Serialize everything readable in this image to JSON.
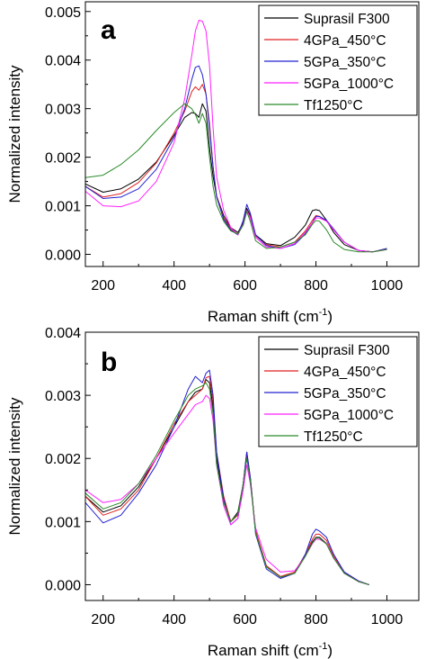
{
  "chart_data": [
    {
      "type": "line",
      "panel_label": "a",
      "xlabel": "Raman shift (cm",
      "xlabel_sup": "-1",
      "xlabel_end": ")",
      "ylabel": "Normalized intensity",
      "xlim": [
        150,
        1090
      ],
      "ylim": [
        -0.00025,
        0.0052
      ],
      "xticks": [
        200,
        400,
        600,
        800,
        1000
      ],
      "xtick_labels": [
        "200",
        "400",
        "600",
        "800",
        "1000"
      ],
      "yticks": [
        0.0,
        0.001,
        0.002,
        0.003,
        0.004,
        0.005
      ],
      "ytick_labels": [
        "0.000",
        "0.001",
        "0.002",
        "0.003",
        "0.004",
        "0.005"
      ],
      "legend_position": "top-right",
      "series": [
        {
          "name": "Suprasil F300",
          "color": "#000000",
          "x": [
            150,
            200,
            250,
            300,
            350,
            400,
            430,
            450,
            460,
            470,
            480,
            490,
            500,
            510,
            520,
            540,
            560,
            580,
            595,
            605,
            615,
            630,
            660,
            700,
            740,
            770,
            790,
            800,
            810,
            830,
            850,
            880,
            920,
            960,
            1000
          ],
          "y": [
            0.00145,
            0.00128,
            0.00135,
            0.00155,
            0.0019,
            0.00245,
            0.00282,
            0.00292,
            0.0029,
            0.00282,
            0.0031,
            0.00295,
            0.0022,
            0.0016,
            0.0012,
            0.0008,
            0.00055,
            0.00045,
            0.00065,
            0.00095,
            0.0008,
            0.0004,
            0.00022,
            0.00018,
            0.00035,
            0.0006,
            0.0009,
            0.00092,
            0.0009,
            0.0007,
            0.00045,
            0.0002,
            8e-05,
            5e-05,
            0.0001
          ]
        },
        {
          "name": "4GPa_450°C",
          "color": "#e02020",
          "x": [
            150,
            200,
            250,
            300,
            350,
            400,
            430,
            450,
            460,
            470,
            480,
            490,
            500,
            510,
            520,
            540,
            560,
            580,
            595,
            605,
            615,
            630,
            660,
            700,
            740,
            770,
            790,
            800,
            810,
            830,
            850,
            880,
            920,
            960,
            1000
          ],
          "y": [
            0.0014,
            0.00118,
            0.00125,
            0.00148,
            0.00188,
            0.0025,
            0.00295,
            0.00335,
            0.00345,
            0.00338,
            0.0035,
            0.0033,
            0.0027,
            0.0018,
            0.0012,
            0.00075,
            0.00052,
            0.00042,
            0.00062,
            0.0009,
            0.00078,
            0.00038,
            0.0002,
            0.00015,
            0.00025,
            0.00048,
            0.0007,
            0.0008,
            0.00078,
            0.00068,
            0.0005,
            0.00025,
            8e-05,
            5e-05,
            0.00012
          ]
        },
        {
          "name": "5GPa_350°C",
          "color": "#2020d0",
          "x": [
            150,
            200,
            250,
            300,
            350,
            400,
            430,
            450,
            460,
            470,
            480,
            490,
            500,
            510,
            520,
            540,
            560,
            580,
            595,
            605,
            615,
            630,
            660,
            700,
            740,
            770,
            790,
            800,
            810,
            830,
            850,
            880,
            920,
            960,
            1000
          ],
          "y": [
            0.0014,
            0.00115,
            0.00118,
            0.00135,
            0.00175,
            0.0024,
            0.003,
            0.0036,
            0.00385,
            0.00388,
            0.0037,
            0.0033,
            0.0026,
            0.0018,
            0.00118,
            0.00072,
            0.0005,
            0.0004,
            0.0007,
            0.00103,
            0.00085,
            0.0004,
            0.00018,
            0.00012,
            0.0002,
            0.00042,
            0.00065,
            0.00078,
            0.00078,
            0.0007,
            0.00052,
            0.00025,
            8e-05,
            5e-05,
            0.00012
          ]
        },
        {
          "name": "5GPa_1000°C",
          "color": "#ff20ff",
          "x": [
            150,
            200,
            250,
            300,
            350,
            400,
            430,
            450,
            460,
            470,
            480,
            490,
            500,
            510,
            520,
            540,
            560,
            580,
            595,
            605,
            615,
            630,
            660,
            700,
            740,
            770,
            790,
            800,
            810,
            830,
            850,
            880,
            920,
            960,
            1000
          ],
          "y": [
            0.0013,
            0.001,
            0.00098,
            0.0011,
            0.0015,
            0.0023,
            0.0032,
            0.0041,
            0.0046,
            0.00482,
            0.0048,
            0.0046,
            0.0039,
            0.0026,
            0.0016,
            0.0009,
            0.00055,
            0.0004,
            0.00062,
            0.0009,
            0.00075,
            0.00035,
            0.00015,
            0.00012,
            0.00022,
            0.00045,
            0.00065,
            0.00075,
            0.00075,
            0.00068,
            0.0005,
            0.00025,
            8e-05,
            5e-05,
            0.0001
          ]
        },
        {
          "name": "Tf1250°C",
          "color": "#2a8a2a",
          "x": [
            150,
            200,
            250,
            300,
            350,
            400,
            430,
            450,
            460,
            470,
            480,
            490,
            500,
            510,
            520,
            540,
            560,
            580,
            595,
            605,
            615,
            630,
            660,
            700,
            740,
            770,
            790,
            800,
            810,
            830,
            850,
            880,
            920,
            960,
            1000
          ],
          "y": [
            0.00158,
            0.00163,
            0.00185,
            0.00215,
            0.00255,
            0.00292,
            0.0031,
            0.003,
            0.00288,
            0.0027,
            0.0029,
            0.0027,
            0.002,
            0.0014,
            0.00102,
            0.00068,
            0.00048,
            0.00042,
            0.0006,
            0.00088,
            0.00068,
            0.00028,
            0.00012,
            0.00015,
            0.00025,
            0.0004,
            0.00062,
            0.0007,
            0.00068,
            0.0005,
            0.00025,
            0.0001,
            5e-05,
            5e-05,
            0.0001
          ]
        }
      ]
    },
    {
      "type": "line",
      "panel_label": "b",
      "xlabel": "Raman shift (cm",
      "xlabel_sup": "-1",
      "xlabel_end": ")",
      "ylabel": "Normalized intensity",
      "xlim": [
        150,
        1090
      ],
      "ylim": [
        -0.00025,
        0.004
      ],
      "xticks": [
        200,
        400,
        600,
        800,
        1000
      ],
      "xtick_labels": [
        "200",
        "400",
        "600",
        "800",
        "1000"
      ],
      "yticks": [
        0.0,
        0.001,
        0.002,
        0.003,
        0.004
      ],
      "ytick_labels": [
        "0.000",
        "0.001",
        "0.002",
        "0.003",
        "0.004"
      ],
      "legend_position": "top-right",
      "series": [
        {
          "name": "Suprasil F300",
          "color": "#000000",
          "x": [
            150,
            200,
            250,
            300,
            350,
            400,
            440,
            460,
            480,
            490,
            500,
            510,
            520,
            540,
            560,
            580,
            595,
            605,
            615,
            630,
            660,
            700,
            740,
            770,
            790,
            800,
            810,
            830,
            850,
            880,
            920,
            950
          ],
          "y": [
            0.0014,
            0.00115,
            0.00125,
            0.00155,
            0.002,
            0.0025,
            0.0029,
            0.00305,
            0.0031,
            0.00325,
            0.0032,
            0.0028,
            0.002,
            0.00135,
            0.001,
            0.00115,
            0.0016,
            0.0021,
            0.0017,
            0.00085,
            0.0003,
            0.00012,
            0.00018,
            0.00045,
            0.00068,
            0.00075,
            0.00075,
            0.00065,
            0.00042,
            0.00018,
            5e-05,
            0.0
          ]
        },
        {
          "name": "4GPa_450°C",
          "color": "#e02020",
          "x": [
            150,
            200,
            250,
            300,
            350,
            400,
            440,
            460,
            480,
            490,
            500,
            510,
            520,
            540,
            560,
            580,
            595,
            605,
            615,
            630,
            660,
            700,
            740,
            770,
            790,
            800,
            810,
            830,
            850,
            880,
            920,
            950
          ],
          "y": [
            0.0014,
            0.0011,
            0.0012,
            0.0015,
            0.002,
            0.00255,
            0.0029,
            0.003,
            0.0031,
            0.00328,
            0.0033,
            0.0029,
            0.0021,
            0.0014,
            0.001,
            0.0011,
            0.0016,
            0.00205,
            0.0017,
            0.00085,
            0.0003,
            0.00013,
            0.0002,
            0.00048,
            0.00072,
            0.0008,
            0.0008,
            0.0007,
            0.00045,
            0.0002,
            6e-05,
            0.0
          ]
        },
        {
          "name": "5GPa_350°C",
          "color": "#2020d0",
          "x": [
            150,
            200,
            250,
            300,
            350,
            400,
            440,
            460,
            480,
            490,
            500,
            510,
            520,
            540,
            560,
            580,
            595,
            605,
            615,
            630,
            660,
            700,
            740,
            770,
            790,
            800,
            810,
            830,
            850,
            880,
            920,
            950
          ],
          "y": [
            0.0013,
            0.00098,
            0.0011,
            0.00145,
            0.0019,
            0.0025,
            0.0031,
            0.0033,
            0.0032,
            0.00335,
            0.0034,
            0.003,
            0.0021,
            0.00135,
            0.00095,
            0.00105,
            0.0016,
            0.0021,
            0.0017,
            0.0008,
            0.00025,
            0.0001,
            0.00018,
            0.00048,
            0.0008,
            0.00088,
            0.00085,
            0.00075,
            0.00048,
            0.0002,
            6e-05,
            0.0
          ]
        },
        {
          "name": "5GPa_1000°C",
          "color": "#ff20ff",
          "x": [
            150,
            200,
            250,
            300,
            350,
            400,
            440,
            460,
            480,
            490,
            500,
            510,
            520,
            540,
            560,
            580,
            595,
            605,
            615,
            630,
            660,
            700,
            740,
            770,
            790,
            800,
            810,
            830,
            850,
            880,
            920,
            950
          ],
          "y": [
            0.0015,
            0.0013,
            0.00135,
            0.0016,
            0.002,
            0.0024,
            0.0027,
            0.00285,
            0.0029,
            0.003,
            0.00295,
            0.0026,
            0.0019,
            0.00125,
            0.00095,
            0.00105,
            0.0015,
            0.0019,
            0.0016,
            0.0009,
            0.0004,
            0.0002,
            0.00022,
            0.00045,
            0.00065,
            0.00072,
            0.00072,
            0.00065,
            0.00042,
            0.00018,
            5e-05,
            0.0
          ]
        },
        {
          "name": "Tf1250°C",
          "color": "#2a8a2a",
          "x": [
            150,
            200,
            250,
            300,
            350,
            400,
            440,
            460,
            480,
            490,
            500,
            510,
            520,
            540,
            560,
            580,
            595,
            605,
            615,
            630,
            660,
            700,
            740,
            770,
            790,
            800,
            810,
            830,
            850,
            880,
            920,
            950
          ],
          "y": [
            0.00145,
            0.0012,
            0.0013,
            0.0016,
            0.00205,
            0.0026,
            0.003,
            0.0031,
            0.00315,
            0.0032,
            0.0031,
            0.0027,
            0.0019,
            0.0013,
            0.001,
            0.00112,
            0.0016,
            0.002,
            0.00165,
            0.00082,
            0.00028,
            0.00012,
            0.00018,
            0.00045,
            0.00066,
            0.00074,
            0.00074,
            0.00064,
            0.00042,
            0.00018,
            5e-05,
            0.0
          ]
        }
      ]
    }
  ]
}
